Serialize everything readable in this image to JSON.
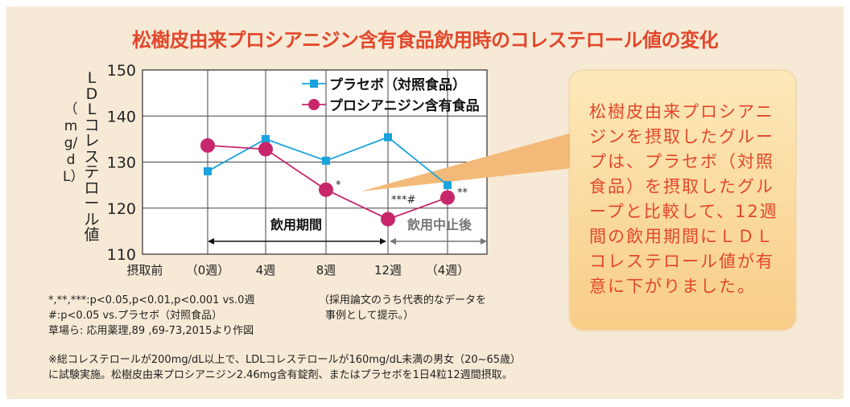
{
  "title": "松樹皮由来プロシアニジン含有食品飲用時のコレステロール値の変化",
  "chart_data": {
    "type": "line",
    "title": "松樹皮由来プロシアニジン含有食品飲用時のコレステロール値の変化",
    "ylabel": "LDLコレステロール値",
    "yunit": "（mg/dL）",
    "ylim": [
      110,
      150
    ],
    "yticks": [
      "110",
      "120",
      "130",
      "140",
      "150"
    ],
    "xlabel_prefix": "摂取前",
    "categories": [
      "（0週）",
      "4週",
      "8週",
      "12週",
      "（4週）"
    ],
    "grid": true,
    "legend_position": "top-right",
    "series": [
      {
        "name": "プラセボ（対照食品）",
        "color": "#1aa3dc",
        "marker": "square",
        "values": [
          128,
          135,
          130.3,
          135.4,
          125
        ]
      },
      {
        "name": "プロシアニジン含有食品",
        "color": "#c8266b",
        "marker": "circle",
        "values": [
          133.6,
          132.8,
          124,
          117.6,
          122.3
        ]
      }
    ],
    "annotations": [
      {
        "label": "*",
        "index": 2
      },
      {
        "label": "***#",
        "index": 3
      },
      {
        "label": "**",
        "index": 4
      }
    ],
    "periods": [
      {
        "label": "飲用期間",
        "color": "#111"
      },
      {
        "label": "飲用中止後",
        "color": "#777"
      }
    ]
  },
  "callout": "松樹皮由来プロシアニジンを摂取したグループは、プラセボ（対照食品）を摂取したグループと比較して、12週間の飲用期間にＬＤＬコレステロール値が有意に下がりました。",
  "notes": {
    "sig1": "*,**,***:p<0.05,p<0.01,p<0.001 vs.0週",
    "sig2": "#:p<0.05 vs.プラセボ（対照食品）",
    "source": "草場ら: 応用薬理,89 ,69-73,2015より作図",
    "rep1": "（採用論文のうち代表的なデータを",
    "rep2": "事例として提示。）",
    "foot1": "※総コレステロールが200mg/dL以上で、LDLコレステロールが160mg/dL未満の男女（20~65歳）",
    "foot2": "に試験実施。松樹皮由来プロシアニジン2.46mg含有錠剤、またはプラセボを1日4粒12週間摂取。"
  }
}
